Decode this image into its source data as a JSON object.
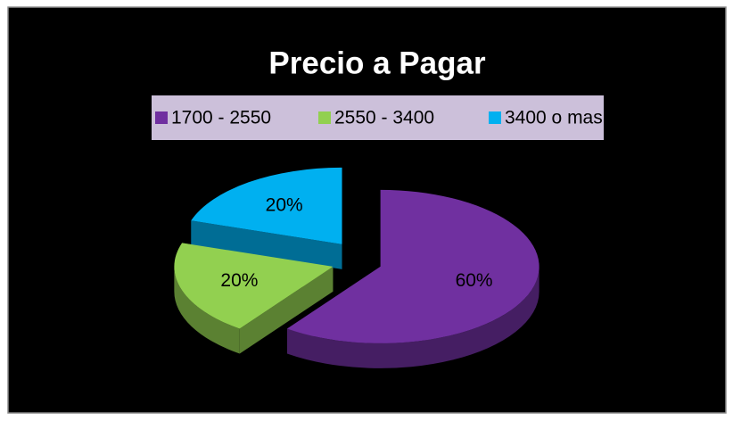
{
  "chart_data": {
    "type": "pie",
    "title": "Precio a Pagar",
    "categories": [
      "1700 - 2550",
      "2550 - 3400",
      "3400 o mas"
    ],
    "values": [
      60,
      20,
      20
    ],
    "value_labels": [
      "60%",
      "20%",
      "20%"
    ],
    "colors": [
      "#7030a0",
      "#92d050",
      "#00b0f0"
    ],
    "legend": "top",
    "exploded": true,
    "three_d": true
  }
}
